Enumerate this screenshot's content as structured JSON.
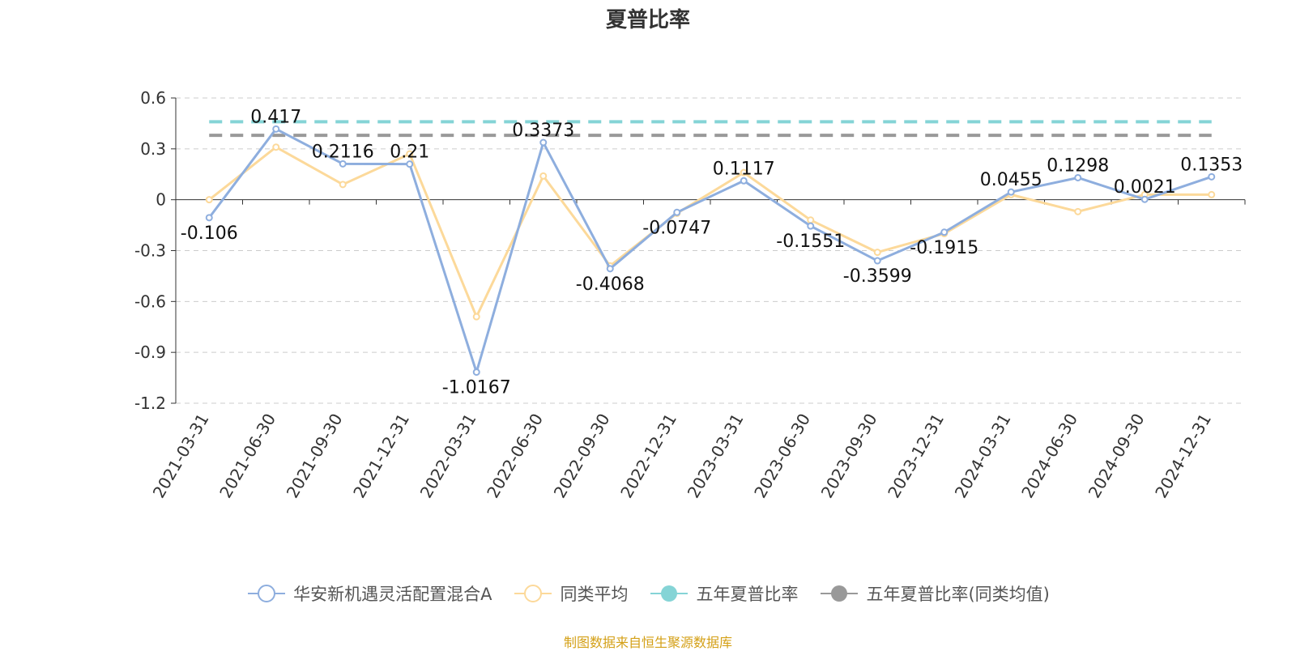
{
  "chart_data": {
    "type": "line",
    "title": "夏普比率",
    "categories": [
      "2021-03-31",
      "2021-06-30",
      "2021-09-30",
      "2021-12-31",
      "2022-03-31",
      "2022-06-30",
      "2022-09-30",
      "2022-12-31",
      "2023-03-31",
      "2023-06-30",
      "2023-09-30",
      "2023-12-31",
      "2024-03-31",
      "2024-06-30",
      "2024-09-30",
      "2024-12-31"
    ],
    "ylim": [
      -1.2,
      0.6
    ],
    "yticks": [
      "0.6",
      "0.3",
      "0",
      "-0.3",
      "-0.6",
      "-0.9",
      "-1.2"
    ],
    "grid": true,
    "legend_position": "bottom",
    "series": [
      {
        "name": "华安新机遇灵活配置混合A",
        "color": "#8eaede",
        "values": [
          -0.106,
          0.417,
          0.2116,
          0.21,
          -1.0167,
          0.3373,
          -0.4068,
          -0.0747,
          0.1117,
          -0.1551,
          -0.3599,
          -0.1915,
          0.0455,
          0.1298,
          0.0021,
          0.1353
        ],
        "labels": [
          "-0.106",
          "0.417",
          "0.2116",
          "0.21",
          "-1.0167",
          "0.3373",
          "-0.4068",
          "-0.0747",
          "0.1117",
          "-0.1551",
          "-0.3599",
          "-0.1915",
          "0.0455",
          "0.1298",
          "0.0021",
          "0.1353"
        ]
      },
      {
        "name": "同类平均",
        "color": "#fcd99a",
        "values": [
          0.0,
          0.31,
          0.09,
          0.27,
          -0.69,
          0.14,
          -0.39,
          -0.08,
          0.16,
          -0.12,
          -0.31,
          -0.2,
          0.03,
          -0.07,
          0.03,
          0.03
        ]
      },
      {
        "name": "五年夏普比率",
        "color": "#85d4d6",
        "dashed_constant": 0.46
      },
      {
        "name": "五年夏普比率(同类均值)",
        "color": "#999999",
        "dashed_constant": 0.38
      }
    ]
  },
  "source_note": "制图数据来自恒生聚源数据库"
}
